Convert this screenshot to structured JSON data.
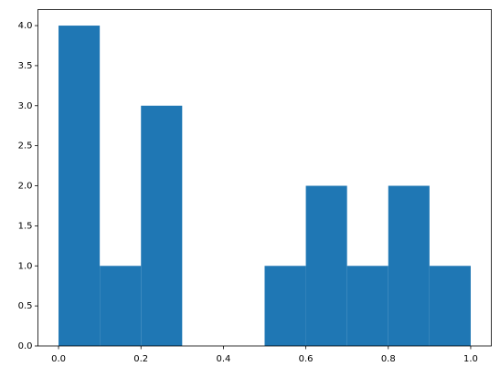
{
  "chart_data": {
    "type": "histogram",
    "bins": [
      0,
      0.1,
      0.2,
      0.3,
      0.4,
      0.5,
      0.6,
      0.7,
      0.8,
      0.9,
      1
    ],
    "values": [
      4,
      1,
      3,
      0,
      0,
      1,
      2,
      1,
      2,
      1
    ],
    "color": "#1f77b4",
    "xlim": [
      -0.05,
      1.05
    ],
    "xticks": [
      {
        "value": 0,
        "label": "0.0"
      },
      0.2,
      0.4,
      0.6,
      0.8,
      {
        "value": 1,
        "label": "1.0"
      }
    ],
    "ylim": [
      0,
      4.2
    ],
    "yticks": [
      {
        "value": 0,
        "label": "0.0"
      },
      0.5,
      {
        "value": 1,
        "label": "1.0"
      },
      1.5,
      {
        "value": 2,
        "label": "2.0"
      },
      2.5,
      {
        "value": 3,
        "label": "3.0"
      },
      3.5,
      {
        "value": 4,
        "label": "4.0"
      }
    ],
    "grid": false
  }
}
